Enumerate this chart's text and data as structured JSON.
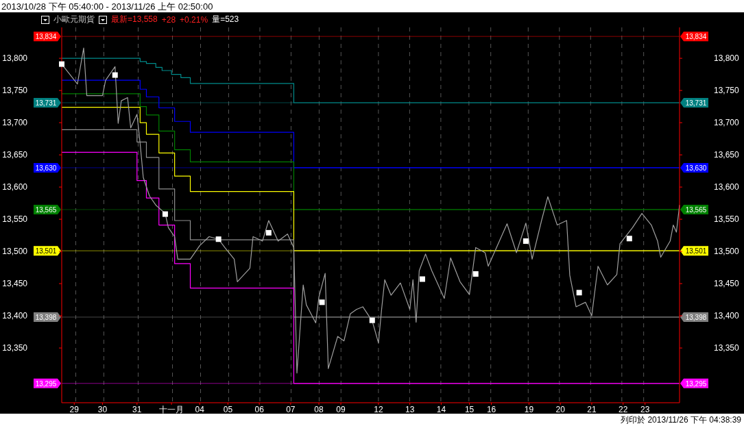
{
  "chart_data": {
    "type": "line",
    "title": "2013/10/28 下午 05:40:00 - 2013/11/26 上午 02:50:00",
    "subtitle": "小歐元期貨",
    "annotations": [
      "最新=13,558",
      "+28",
      "+0.21%",
      "量=523",
      "列印於 2013/11/26 下午 04:38:39"
    ],
    "categories": [
      null,
      null,
      null,
      null,
      "29",
      null,
      null,
      null,
      null,
      null,
      null,
      null,
      null,
      "30",
      null,
      null,
      null,
      null,
      null,
      null,
      null,
      null,
      null,
      null,
      "31",
      null,
      null,
      null,
      null,
      null,
      null,
      null,
      null,
      null,
      null,
      "十一月",
      null,
      null,
      null,
      null,
      null,
      null,
      null,
      null,
      "04",
      null,
      null,
      null,
      null,
      null,
      null,
      null,
      null,
      "05",
      null,
      null,
      null,
      null,
      null,
      null,
      null,
      null,
      null,
      "06",
      null,
      null,
      null,
      null,
      null,
      null,
      null,
      null,
      null,
      "07",
      null,
      null,
      null,
      null,
      null,
      null,
      null,
      null,
      "08",
      null,
      null,
      null,
      null,
      null,
      null,
      "09",
      null,
      null,
      null,
      null,
      null,
      null,
      null,
      null,
      null,
      null,
      null,
      "12",
      null,
      null,
      null,
      null,
      null,
      null,
      null,
      null,
      null,
      "13",
      null,
      null,
      null,
      null,
      null,
      null,
      null,
      null,
      null,
      "14",
      null,
      null,
      null,
      null,
      null,
      null,
      null,
      null,
      "15",
      null,
      null,
      null,
      null,
      null,
      null,
      "16",
      null,
      null,
      null,
      null,
      null,
      null,
      null,
      null,
      null,
      null,
      null,
      "19",
      null,
      null,
      null,
      null,
      null,
      null,
      null,
      null,
      null,
      "20",
      null,
      null,
      null,
      null,
      null,
      null,
      null,
      null,
      null,
      "21",
      null,
      null,
      null,
      null,
      null,
      null,
      null,
      null,
      null,
      "22",
      null,
      null,
      null,
      null,
      null,
      null,
      "23",
      null,
      null,
      null,
      null,
      null,
      null,
      null,
      null,
      null,
      null,
      null
    ],
    "ylim": [
      13265,
      13848
    ],
    "yticks": [
      {
        "value": 13350,
        "label": "13,350"
      },
      {
        "value": 13400,
        "label": "13,400"
      },
      {
        "value": 13450,
        "label": "13,450"
      },
      {
        "value": 13500,
        "label": "13,500"
      },
      {
        "value": 13550,
        "label": "13,550"
      },
      {
        "value": 13600,
        "label": "13,600"
      },
      {
        "value": 13650,
        "label": "13,650"
      },
      {
        "value": 13700,
        "label": "13,700"
      },
      {
        "value": 13750,
        "label": "13,750"
      },
      {
        "value": 13800,
        "label": "13,800"
      }
    ],
    "y2lim": [
      13265,
      13848
    ],
    "y2ticks": [
      {
        "value": 13350,
        "label": "13,350"
      },
      {
        "value": 13400,
        "label": "13,400"
      },
      {
        "value": 13450,
        "label": "13,450"
      },
      {
        "value": 13500,
        "label": "13,500"
      },
      {
        "value": 13550,
        "label": "13,550"
      },
      {
        "value": 13600,
        "label": "13,600"
      },
      {
        "value": 13650,
        "label": "13,650"
      },
      {
        "value": 13700,
        "label": "13,700"
      },
      {
        "value": 13750,
        "label": "13,750"
      },
      {
        "value": 13800,
        "label": "13,800"
      }
    ],
    "grid": "x",
    "ref_lines": [
      {
        "axis": "y",
        "value": 13834,
        "label": "13,834",
        "color": "#ff0000"
      },
      {
        "axis": "y",
        "value": 13731,
        "label": "13,731",
        "color": "#008080"
      },
      {
        "axis": "y",
        "value": 13630,
        "label": "13,630",
        "color": "#0000ff"
      },
      {
        "axis": "y",
        "value": 13565,
        "label": "13,565",
        "color": "#008000"
      },
      {
        "axis": "y",
        "value": 13501,
        "label": "13,501",
        "color": "#ffff00"
      },
      {
        "axis": "y",
        "value": 13398,
        "label": "13,398",
        "color": "#808080"
      },
      {
        "axis": "y",
        "value": 13295,
        "label": "13,295",
        "color": "#ff00ff"
      }
    ],
    "series": [
      {
        "type": "step",
        "color": "#008b8b",
        "values": [
          13800,
          null,
          null,
          null,
          null,
          null,
          null,
          null,
          null,
          null,
          null,
          null,
          null,
          null,
          null,
          null,
          null,
          null,
          null,
          null,
          null,
          null,
          null,
          null,
          null,
          13795,
          null,
          13792,
          null,
          null,
          13786,
          null,
          13781,
          null,
          null,
          13775,
          null,
          null,
          13770,
          null,
          null,
          13761,
          null,
          null,
          null,
          null,
          null,
          null,
          null,
          null,
          null,
          null,
          null,
          null,
          null,
          null,
          null,
          null,
          null,
          null,
          null,
          null,
          null,
          null,
          null,
          null,
          null,
          null,
          null,
          null,
          null,
          null,
          null,
          null,
          13731,
          null,
          null,
          null,
          null,
          null,
          null,
          null,
          null,
          null,
          null,
          null,
          null,
          null,
          null,
          null,
          null,
          null,
          null,
          null,
          null,
          null,
          null,
          null,
          null,
          null,
          null,
          null,
          null,
          null,
          null,
          null,
          null,
          null,
          null,
          null,
          null,
          null,
          null,
          null,
          null,
          null,
          null,
          null,
          null,
          null,
          null,
          null,
          null,
          null,
          null,
          null,
          null,
          null,
          null,
          null,
          null,
          null,
          null,
          null,
          null,
          null,
          null,
          null,
          null,
          null,
          null,
          null,
          null,
          null,
          null,
          null,
          null,
          null,
          null,
          null,
          null,
          null,
          null,
          null,
          null,
          null,
          null,
          null,
          null,
          null,
          null,
          null,
          null,
          null,
          null,
          null,
          null,
          null,
          null,
          null,
          null,
          null,
          null,
          null,
          null,
          null,
          null,
          null,
          null,
          null,
          null,
          null,
          null,
          null,
          null,
          null,
          null,
          null,
          null,
          null,
          null,
          null,
          null,
          null,
          null,
          null,
          null,
          13731
        ]
      },
      {
        "type": "step",
        "color": "#0000ff",
        "values": [
          13766,
          null,
          null,
          null,
          null,
          null,
          null,
          null,
          null,
          null,
          null,
          null,
          null,
          null,
          null,
          null,
          null,
          null,
          null,
          null,
          null,
          null,
          null,
          null,
          null,
          13752,
          null,
          13740,
          null,
          null,
          null,
          13723,
          null,
          null,
          null,
          null,
          13702,
          null,
          null,
          null,
          null,
          13685,
          null,
          null,
          null,
          null,
          null,
          null,
          null,
          null,
          null,
          null,
          null,
          null,
          null,
          null,
          null,
          null,
          null,
          null,
          null,
          null,
          null,
          null,
          null,
          null,
          null,
          null,
          null,
          null,
          null,
          null,
          null,
          null,
          13630,
          null,
          null,
          null,
          null,
          null,
          null,
          null,
          null,
          null,
          null,
          null,
          null,
          null,
          null,
          null,
          null,
          null,
          null,
          null,
          null,
          null,
          null,
          null,
          null,
          null,
          null,
          null,
          null,
          null,
          null,
          null,
          null,
          null,
          null,
          null,
          null,
          null,
          null,
          null,
          null,
          null,
          null,
          null,
          null,
          null,
          null,
          null,
          null,
          null,
          null,
          null,
          null,
          null,
          null,
          null,
          null,
          null,
          null,
          null,
          null,
          null,
          null,
          null,
          null,
          null,
          null,
          null,
          null,
          null,
          null,
          null,
          null,
          null,
          null,
          null,
          null,
          null,
          null,
          null,
          null,
          null,
          null,
          null,
          null,
          null,
          null,
          null,
          null,
          null,
          null,
          null,
          null,
          null,
          null,
          null,
          null,
          null,
          null,
          null,
          null,
          null,
          null,
          null,
          null,
          null,
          null,
          null,
          null,
          null,
          null,
          null,
          null,
          null,
          null,
          null,
          null,
          null,
          null,
          null,
          null,
          null,
          null,
          13630
        ]
      },
      {
        "type": "step",
        "color": "#008000",
        "values": [
          13745,
          null,
          null,
          null,
          null,
          null,
          null,
          null,
          null,
          null,
          null,
          null,
          null,
          null,
          null,
          null,
          null,
          null,
          null,
          null,
          null,
          null,
          null,
          null,
          null,
          13725,
          null,
          13712,
          null,
          null,
          null,
          13687,
          null,
          null,
          null,
          null,
          13658,
          null,
          null,
          null,
          null,
          13639,
          null,
          null,
          null,
          null,
          null,
          null,
          null,
          null,
          null,
          null,
          null,
          null,
          null,
          null,
          null,
          null,
          null,
          null,
          null,
          null,
          null,
          null,
          null,
          null,
          null,
          null,
          null,
          null,
          null,
          null,
          null,
          null,
          13565,
          null,
          null,
          null,
          null,
          null,
          null,
          null,
          null,
          null,
          null,
          null,
          null,
          null,
          null,
          null,
          null,
          null,
          null,
          null,
          null,
          null,
          null,
          null,
          null,
          null,
          null,
          null,
          null,
          null,
          null,
          null,
          null,
          null,
          null,
          null,
          null,
          null,
          null,
          null,
          null,
          null,
          null,
          null,
          null,
          null,
          null,
          null,
          null,
          null,
          null,
          null,
          null,
          null,
          null,
          null,
          null,
          null,
          null,
          null,
          null,
          null,
          null,
          null,
          null,
          null,
          null,
          null,
          null,
          null,
          null,
          null,
          null,
          null,
          null,
          null,
          null,
          null,
          null,
          null,
          null,
          null,
          null,
          null,
          null,
          null,
          null,
          null,
          null,
          null,
          null,
          null,
          null,
          null,
          null,
          null,
          null,
          null,
          null,
          null,
          null,
          null,
          null,
          null,
          null,
          null,
          null,
          null,
          null,
          null,
          null,
          null,
          null,
          null,
          null,
          null,
          null,
          null,
          null,
          null,
          null,
          null,
          null,
          13565
        ]
      },
      {
        "type": "step",
        "color": "#ffff00",
        "values": [
          13724,
          null,
          null,
          null,
          null,
          null,
          null,
          null,
          null,
          null,
          null,
          null,
          null,
          null,
          null,
          null,
          null,
          null,
          null,
          null,
          null,
          null,
          null,
          null,
          null,
          13700,
          null,
          13682,
          null,
          null,
          null,
          13653,
          null,
          null,
          null,
          null,
          13617,
          null,
          null,
          null,
          null,
          13593,
          null,
          null,
          null,
          null,
          null,
          null,
          null,
          null,
          null,
          null,
          null,
          null,
          null,
          null,
          null,
          null,
          null,
          null,
          null,
          null,
          null,
          null,
          null,
          null,
          null,
          null,
          null,
          null,
          null,
          null,
          null,
          null,
          13501,
          null,
          null,
          null,
          null,
          null,
          null,
          null,
          null,
          null,
          null,
          null,
          null,
          null,
          null,
          null,
          null,
          null,
          null,
          null,
          null,
          null,
          null,
          null,
          null,
          null,
          null,
          null,
          null,
          null,
          null,
          null,
          null,
          null,
          null,
          null,
          null,
          null,
          null,
          null,
          null,
          null,
          null,
          null,
          null,
          null,
          null,
          null,
          null,
          null,
          null,
          null,
          null,
          null,
          null,
          null,
          null,
          null,
          null,
          null,
          null,
          null,
          null,
          null,
          null,
          null,
          null,
          null,
          null,
          null,
          null,
          null,
          null,
          null,
          null,
          null,
          null,
          null,
          null,
          null,
          null,
          null,
          null,
          null,
          null,
          null,
          null,
          null,
          null,
          null,
          null,
          null,
          null,
          null,
          null,
          null,
          null,
          null,
          null,
          null,
          null,
          null,
          null,
          null,
          null,
          null,
          null,
          null,
          null,
          null,
          null,
          null,
          null,
          null,
          null,
          null,
          null,
          null,
          null,
          null,
          null,
          null,
          null,
          13501
        ]
      },
      {
        "type": "step",
        "color": "#909090",
        "values": [
          13689,
          null,
          null,
          null,
          null,
          null,
          null,
          null,
          null,
          null,
          null,
          null,
          null,
          null,
          null,
          null,
          null,
          null,
          null,
          null,
          null,
          null,
          null,
          null,
          13670,
          null,
          null,
          13646,
          null,
          null,
          null,
          13597,
          null,
          null,
          null,
          null,
          13548,
          null,
          null,
          null,
          null,
          13518,
          null,
          null,
          null,
          null,
          null,
          null,
          null,
          null,
          null,
          null,
          null,
          null,
          null,
          null,
          null,
          null,
          null,
          null,
          null,
          null,
          null,
          null,
          null,
          null,
          null,
          null,
          null,
          null,
          null,
          null,
          null,
          null,
          13398,
          null,
          null,
          null,
          null,
          null,
          null,
          null,
          null,
          null,
          null,
          null,
          null,
          null,
          null,
          null,
          null,
          null,
          null,
          null,
          null,
          null,
          null,
          null,
          null,
          null,
          null,
          null,
          null,
          null,
          null,
          null,
          null,
          null,
          null,
          null,
          null,
          null,
          null,
          null,
          null,
          null,
          null,
          null,
          null,
          null,
          null,
          null,
          null,
          null,
          null,
          null,
          null,
          null,
          null,
          null,
          null,
          null,
          null,
          null,
          null,
          null,
          null,
          null,
          null,
          null,
          null,
          null,
          null,
          null,
          null,
          null,
          null,
          null,
          null,
          null,
          null,
          null,
          null,
          null,
          null,
          null,
          null,
          null,
          null,
          null,
          null,
          null,
          null,
          null,
          null,
          null,
          null,
          null,
          null,
          null,
          null,
          null,
          null,
          null,
          null,
          null,
          null,
          null,
          null,
          null,
          null,
          null,
          null,
          null,
          null,
          null,
          null,
          null,
          null,
          null,
          null,
          null,
          null,
          null,
          null,
          null,
          null,
          13398
        ]
      },
      {
        "type": "step",
        "color": "#ff00ff",
        "values": [
          13654,
          null,
          null,
          null,
          null,
          null,
          null,
          null,
          null,
          null,
          null,
          null,
          null,
          null,
          null,
          null,
          null,
          null,
          null,
          null,
          null,
          null,
          null,
          null,
          13610,
          null,
          null,
          13583,
          null,
          null,
          null,
          13541,
          null,
          null,
          null,
          null,
          13481,
          null,
          null,
          null,
          null,
          13443,
          null,
          null,
          null,
          null,
          null,
          null,
          null,
          null,
          null,
          null,
          null,
          null,
          null,
          null,
          null,
          null,
          null,
          null,
          null,
          null,
          null,
          null,
          null,
          null,
          null,
          null,
          null,
          null,
          null,
          null,
          null,
          null,
          13295,
          null,
          null,
          null,
          null,
          null,
          null,
          null,
          null,
          null,
          null,
          null,
          null,
          null,
          null,
          null,
          null,
          null,
          null,
          null,
          null,
          null,
          null,
          null,
          null,
          null,
          null,
          null,
          null,
          null,
          null,
          null,
          null,
          null,
          null,
          null,
          null,
          null,
          null,
          null,
          null,
          null,
          null,
          null,
          null,
          null,
          null,
          null,
          null,
          null,
          null,
          null,
          null,
          null,
          null,
          null,
          null,
          null,
          null,
          null,
          null,
          null,
          null,
          null,
          null,
          null,
          null,
          null,
          null,
          null,
          null,
          null,
          null,
          null,
          null,
          null,
          null,
          null,
          null,
          null,
          null,
          null,
          null,
          null,
          null,
          null,
          null,
          null,
          null,
          null,
          null,
          null,
          null,
          null,
          null,
          null,
          null,
          null,
          null,
          null,
          null,
          null,
          null,
          null,
          null,
          null,
          null,
          null,
          null,
          null,
          null,
          null,
          null,
          null,
          null,
          null,
          null,
          null,
          null,
          null,
          null,
          null,
          null,
          13295
        ]
      },
      {
        "type": "line",
        "color": "#a0a0a0",
        "values": [
          13791,
          null,
          null,
          null,
          null,
          13760,
          null,
          13816,
          13742,
          null,
          null,
          null,
          null,
          13742,
          13766,
          null,
          null,
          13787,
          13699,
          13734,
          null,
          13739,
          13692,
          null,
          13713,
          13668,
          13615,
          null,
          13586,
          null,
          13572,
          null,
          null,
          13559,
          13537,
          null,
          13523,
          13488,
          null,
          null,
          null,
          13488,
          null,
          null,
          13509,
          null,
          null,
          13523,
          null,
          null,
          13519,
          null,
          13506,
          null,
          null,
          13488,
          13453,
          null,
          null,
          null,
          13474,
          13523,
          null,
          null,
          13516,
          null,
          13548,
          null,
          null,
          13516,
          null,
          null,
          13527,
          null,
          13506,
          13311,
          null,
          13448,
          13417,
          null,
          null,
          13389,
          13429,
          null,
          13466,
          13318,
          null,
          null,
          13368,
          null,
          13361,
          null,
          13403,
          null,
          13410,
          null,
          13414,
          null,
          null,
          13392,
          null,
          13358,
          13410,
          13456,
          null,
          13432,
          null,
          null,
          13451,
          null,
          null,
          13410,
          13456,
          13390,
          13470,
          null,
          13496,
          null,
          13470,
          null,
          null,
          null,
          13427,
          null,
          13490,
          null,
          null,
          13453,
          null,
          null,
          13433,
          null,
          13506,
          null,
          null,
          13498,
          13477,
          null,
          null,
          null,
          null,
          null,
          13543,
          null,
          null,
          13498,
          null,
          null,
          13544,
          null,
          13488,
          null,
          null,
          13548,
          null,
          13585,
          null,
          null,
          13541,
          null,
          null,
          13548,
          13463,
          null,
          13414,
          null,
          null,
          13421,
          null,
          13400,
          null,
          13477,
          null,
          null,
          13448,
          null,
          null,
          13464,
          13512,
          null,
          null,
          null,
          13537,
          null,
          null,
          13559,
          null,
          null,
          13541,
          null,
          13516,
          13491,
          null,
          null,
          13516,
          13541,
          13530,
          13572
        ]
      },
      {
        "type": "scatter",
        "marker": "square",
        "color": "#ffffff",
        "values": [
          13791,
          null,
          null,
          null,
          null,
          null,
          null,
          null,
          null,
          null,
          null,
          null,
          null,
          null,
          null,
          null,
          null,
          13774,
          null,
          null,
          null,
          null,
          null,
          null,
          null,
          null,
          null,
          null,
          null,
          null,
          null,
          null,
          null,
          13558,
          null,
          null,
          null,
          null,
          null,
          null,
          null,
          null,
          null,
          null,
          null,
          null,
          null,
          null,
          null,
          null,
          13519,
          null,
          null,
          null,
          null,
          null,
          null,
          null,
          null,
          null,
          null,
          null,
          null,
          null,
          null,
          null,
          13529,
          null,
          null,
          null,
          null,
          null,
          null,
          null,
          null,
          null,
          null,
          null,
          null,
          null,
          null,
          null,
          null,
          13421,
          null,
          null,
          null,
          null,
          null,
          null,
          null,
          null,
          null,
          null,
          null,
          null,
          null,
          null,
          null,
          13393,
          null,
          null,
          null,
          null,
          null,
          null,
          null,
          null,
          null,
          null,
          null,
          null,
          null,
          null,
          null,
          13457,
          null,
          null,
          null,
          null,
          null,
          null,
          null,
          null,
          null,
          null,
          null,
          null,
          null,
          null,
          null,
          null,
          13465,
          null,
          null,
          null,
          null,
          null,
          null,
          null,
          null,
          null,
          null,
          null,
          null,
          null,
          null,
          null,
          13516,
          null,
          null,
          null,
          null,
          null,
          null,
          null,
          null,
          null,
          null,
          null,
          null,
          null,
          null,
          null,
          null,
          13436,
          null,
          null,
          null,
          null,
          null,
          null,
          null,
          null,
          null,
          null,
          null,
          null,
          null,
          null,
          null,
          13520,
          null,
          null,
          null,
          null,
          null,
          null,
          null,
          null,
          null,
          null,
          null,
          null,
          null,
          null,
          null,
          null
        ]
      }
    ]
  }
}
